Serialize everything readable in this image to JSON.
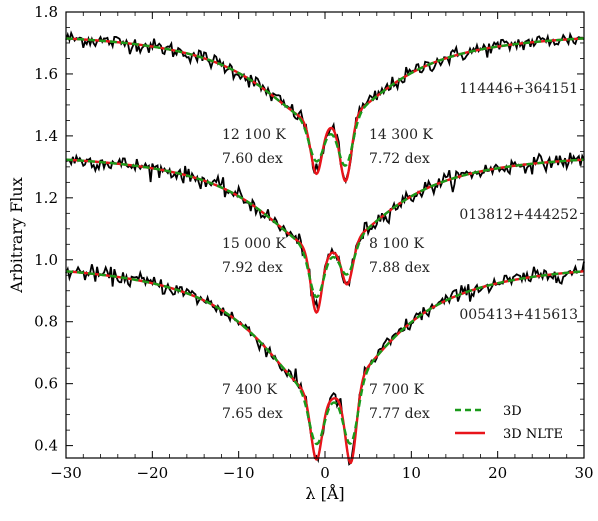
{
  "chart_data": {
    "type": "line",
    "xlabel": "λ [Å]",
    "ylabel": "Arbitrary Flux",
    "xlim": [
      -30,
      30
    ],
    "ylim": [
      0.36,
      1.8
    ],
    "x_ticks": [
      -30,
      -20,
      -10,
      0,
      10,
      20,
      30
    ],
    "x_tick_labels": [
      "−30",
      "−20",
      "−10",
      "0",
      "10",
      "20",
      "30"
    ],
    "y_ticks": [
      0.4,
      0.6,
      0.8,
      1.0,
      1.2,
      1.4,
      1.6,
      1.8
    ],
    "y_tick_labels": [
      "0.4",
      "0.6",
      "0.8",
      "1.0",
      "1.2",
      "1.4",
      "1.6",
      "1.8"
    ],
    "grid": false,
    "legend_position": "bottom-right",
    "series_styles": [
      {
        "label": "3D",
        "color": "#1a9a1a",
        "dash": "dashed"
      },
      {
        "label": "3D NLTE",
        "color": "#e8141a",
        "dash": "solid"
      }
    ],
    "observed_color": "#000000",
    "spectra": [
      {
        "id": "114446+364151",
        "offset": 0.74,
        "line1": {
          "center": -1.0,
          "depth": 0.16
        },
        "line2": {
          "center": 2.4,
          "depth": 0.2
        },
        "labels": [
          {
            "temp": "12 100 K",
            "abund": "7.60 dex"
          },
          {
            "temp": "14 300 K",
            "abund": "7.72 dex"
          }
        ]
      },
      {
        "id": "013812+444252",
        "offset": 0.35,
        "line1": {
          "center": -1.0,
          "depth": 0.2
        },
        "line2": {
          "center": 2.6,
          "depth": 0.13
        },
        "labels": [
          {
            "temp": "15 000 K",
            "abund": "7.92 dex"
          },
          {
            "temp": "8 100 K",
            "abund": "7.88 dex"
          }
        ]
      },
      {
        "id": "005413+415613",
        "offset": 0.0,
        "line1": {
          "center": -1.0,
          "depth": 0.2
        },
        "line2": {
          "center": 3.0,
          "depth": 0.25
        },
        "labels": [
          {
            "temp": "7 400 K",
            "abund": "7.65 dex"
          },
          {
            "temp": "7 700 K",
            "abund": "7.77 dex"
          }
        ]
      }
    ]
  }
}
